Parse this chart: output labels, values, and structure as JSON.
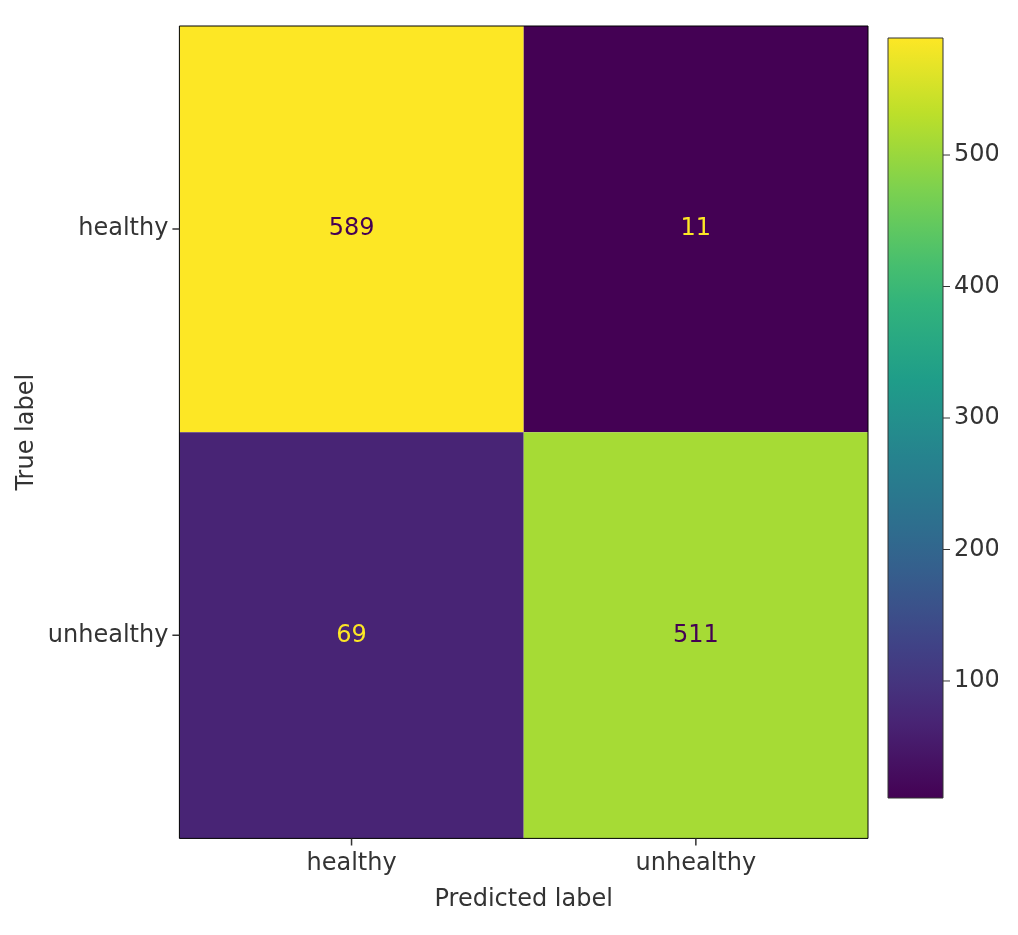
{
  "chart_data": {
    "type": "heatmap",
    "xlabel": "Predicted label",
    "ylabel": "True label",
    "categories": [
      "healthy",
      "unhealthy"
    ],
    "y_categories": [
      "healthy",
      "unhealthy"
    ],
    "cells": [
      [
        589,
        11
      ],
      [
        69,
        511
      ]
    ],
    "clim": [
      11,
      589
    ],
    "cticks": [
      100,
      200,
      300,
      400,
      500
    ],
    "data_labels": true
  }
}
